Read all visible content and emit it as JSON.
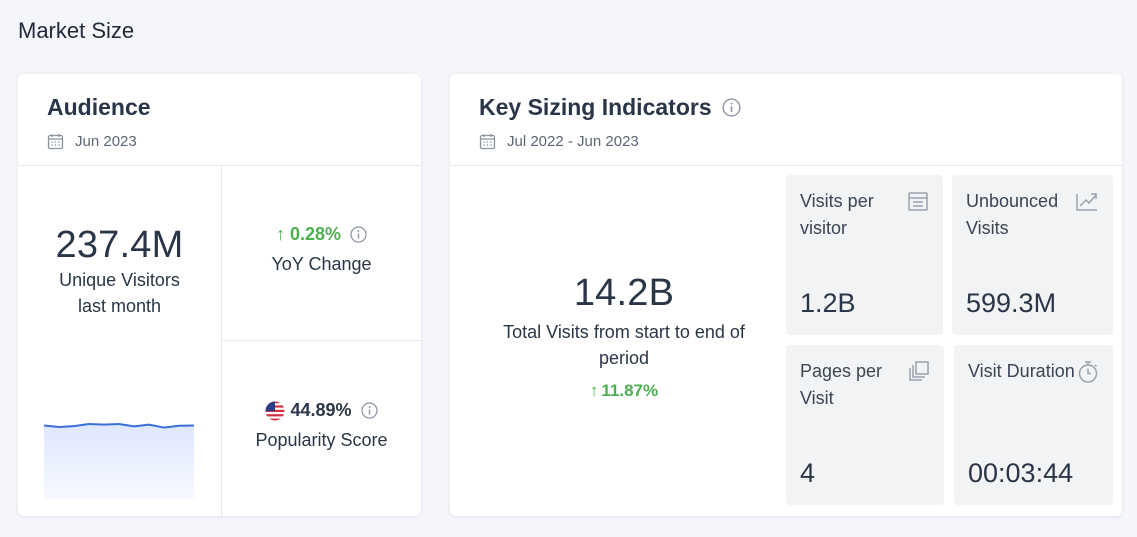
{
  "page": {
    "title": "Market Size"
  },
  "audience": {
    "title": "Audience",
    "date": "Jun 2023",
    "unique_visitors": {
      "value": "237.4M",
      "label_line1": "Unique Visitors",
      "label_line2": "last month"
    },
    "yoy_change": {
      "value": "0.28%",
      "label": "YoY Change",
      "direction": "up"
    },
    "popularity": {
      "value": "44.89%",
      "label": "Popularity Score",
      "flag": "us-flag-icon"
    },
    "sparkline_trend": [
      0.55,
      0.6,
      0.57,
      0.5,
      0.52,
      0.5,
      0.58,
      0.52,
      0.62,
      0.56,
      0.55
    ]
  },
  "ksi": {
    "title": "Key Sizing Indicators",
    "date": "Jul 2022 - Jun 2023",
    "total_visits": {
      "value": "14.2B",
      "label": "Total Visits from start to end of period",
      "change": "11.87%",
      "direction": "up"
    },
    "tiles": [
      {
        "label": "Visits per visitor",
        "value": "1.2B",
        "icon": "calendar-icon"
      },
      {
        "label": "Unbounced Visits",
        "value": "599.3M",
        "icon": "trend-arrow-icon"
      },
      {
        "label": "Pages per Visit",
        "value": "4",
        "icon": "pages-icon"
      },
      {
        "label": "Visit Duration",
        "value": "00:03:44",
        "icon": "stopwatch-icon"
      }
    ]
  },
  "colors": {
    "positive": "#4caf50",
    "line": "#3b6fd8",
    "fill": "#e9efff"
  }
}
